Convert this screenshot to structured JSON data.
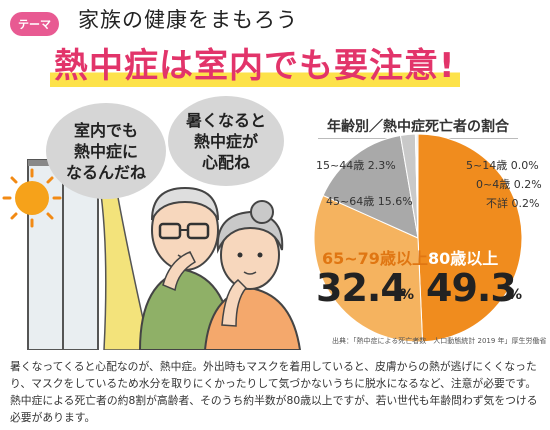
{
  "header": {
    "badge": "テーマ",
    "subtitle": "家族の健康をまもろう",
    "title": "熱中症は室内でも要注意!"
  },
  "illustration": {
    "bubble_left": [
      "室内でも",
      "熱中症に",
      "なるんだね"
    ],
    "bubble_right": [
      "暑くなると",
      "熱中症が",
      "心配ね"
    ]
  },
  "colors": {
    "accent_pink": "#e2346a",
    "orange": "#f08c1e",
    "light_orange": "#f5b35f",
    "gray": "#a9a9a9",
    "light_gray": "#c9c9c9"
  },
  "chart_data": {
    "type": "pie",
    "title": "年齢別／熱中症死亡者の割合",
    "slices": [
      {
        "label": "80歳以上",
        "value": 49.3,
        "display": "49.3"
      },
      {
        "label": "65~79歳以上",
        "value": 32.4,
        "display": "32.4"
      },
      {
        "label": "45~64歳",
        "value": 15.6,
        "display": "15.6%"
      },
      {
        "label": "15~44歳",
        "value": 2.3,
        "display": "2.3%"
      },
      {
        "label": "5~14歳",
        "value": 0.0,
        "display": "0.0%"
      },
      {
        "label": "0~4歳",
        "value": 0.2,
        "display": "0.2%"
      },
      {
        "label": "不詳",
        "value": 0.2,
        "display": "0.2%"
      }
    ],
    "pct_symbol": "%",
    "source": "出典：「熱中症による死亡者数　人口動態統計 2019 年」厚生労働省"
  },
  "description": "暑くなってくると心配なのが、熱中症。外出時もマスクを着用していると、皮膚からの熱が逃げにくくなったり、マスクをしているため水分を取りにくかったりして気づかないうちに脱水になるなど、注意が必要です。熱中症による死亡者の約8割が高齢者、そのうち約半数が80歳以上ですが、若い世代も年齢問わず気をつける必要があります。"
}
